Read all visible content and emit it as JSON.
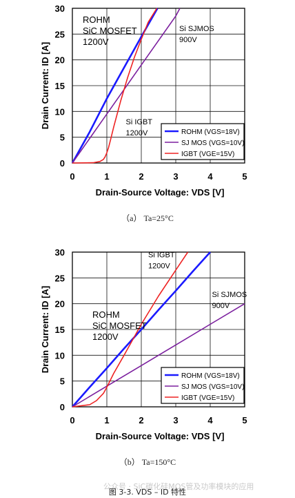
{
  "chart_data": [
    {
      "type": "line",
      "xlabel": "Drain-Source Voltage: VDS [V]",
      "ylabel": "Drain Current: ID [A]",
      "xlim": [
        0,
        5
      ],
      "ylim": [
        0,
        30
      ],
      "xticks": [
        "0",
        "1",
        "2",
        "3",
        "4",
        "5"
      ],
      "yticks": [
        "0",
        "5",
        "10",
        "15",
        "20",
        "25",
        "30"
      ],
      "grid": true,
      "legend_position": "bottom-right",
      "series": [
        {
          "name": "ROHM (VGS=18V)",
          "color": "#1a1aff",
          "x": [
            0,
            0.5,
            1.0,
            1.5,
            2.0,
            2.47
          ],
          "y": [
            0,
            6,
            12.5,
            18.5,
            24.5,
            30
          ]
        },
        {
          "name": "SJ MOS  (VGS=10V)",
          "color": "#7b1f9e",
          "x": [
            0,
            1,
            2,
            3,
            3.12
          ],
          "y": [
            0,
            9.5,
            19,
            28.5,
            30
          ]
        },
        {
          "name": "IGBT (VGE=15V)",
          "color": "#ee2222",
          "x": [
            0,
            0.6,
            0.8,
            0.9,
            0.95,
            1.0,
            1.05,
            1.1,
            1.2,
            1.4,
            1.6,
            1.8,
            2.0,
            2.2,
            2.45
          ],
          "y": [
            0,
            0.05,
            0.3,
            0.7,
            1.2,
            2.0,
            3.0,
            4.3,
            7,
            12,
            16.5,
            20.5,
            24,
            27.3,
            30
          ]
        }
      ],
      "annotations": [
        {
          "lines": [
            "ROHM",
            "SiC MOSFET",
            "1200V"
          ],
          "x": 0.3,
          "y": 27.2
        },
        {
          "lines": [
            "Si SJMOS",
            "900V"
          ],
          "x": 3.1,
          "y": 25.6
        },
        {
          "lines": [
            "Si IGBT",
            "1200V"
          ],
          "x": 1.55,
          "y": 7.5
        }
      ]
    },
    {
      "type": "line",
      "xlabel": "Drain-Source Voltage: VDS [V]",
      "ylabel": "Drain Current: ID [A]",
      "xlim": [
        0,
        5
      ],
      "ylim": [
        0,
        30
      ],
      "xticks": [
        "0",
        "1",
        "2",
        "3",
        "4",
        "5"
      ],
      "yticks": [
        "0",
        "5",
        "10",
        "15",
        "20",
        "25",
        "30"
      ],
      "grid": true,
      "legend_position": "bottom-right",
      "series": [
        {
          "name": "ROHM (VGS=18V)",
          "color": "#1a1aff",
          "x": [
            0,
            0.5,
            1.0,
            1.5,
            2.0,
            2.5,
            3.0,
            3.5,
            4.0
          ],
          "y": [
            0,
            3.8,
            7.5,
            11.3,
            15,
            18.8,
            22.5,
            26.3,
            30
          ]
        },
        {
          "name": "SJ MOS  (VGS=10V)",
          "color": "#7b1f9e",
          "x": [
            0,
            1,
            2,
            3,
            4,
            5
          ],
          "y": [
            0,
            4,
            8,
            12,
            16,
            20
          ]
        },
        {
          "name": "IGBT (VGE=15V)",
          "color": "#ee2222",
          "x": [
            0,
            0.5,
            0.7,
            0.9,
            1.0,
            1.2,
            1.5,
            2.0,
            2.5,
            3.0,
            3.35
          ],
          "y": [
            0,
            0.4,
            1.2,
            2.6,
            3.8,
            6.5,
            10,
            16,
            21.5,
            26.5,
            30
          ]
        }
      ],
      "annotations": [
        {
          "lines": [
            "Si IGBT",
            "1200V"
          ],
          "x": 2.2,
          "y": 29.0
        },
        {
          "lines": [
            "Si SJMOS",
            "900V"
          ],
          "x": 4.05,
          "y": 21.3
        },
        {
          "lines": [
            "ROHM",
            "SiC MOSFET",
            "1200V"
          ],
          "x": 0.58,
          "y": 17.3
        }
      ]
    }
  ],
  "captions": {
    "a": "（a）  Ta=25°C",
    "b": "（b）  Ta=150°C"
  },
  "watermark": "公众号 · SiC碳化硅MOS管及功率模块的应用",
  "figure_title": "图 3-3. VDS – ID 特性"
}
